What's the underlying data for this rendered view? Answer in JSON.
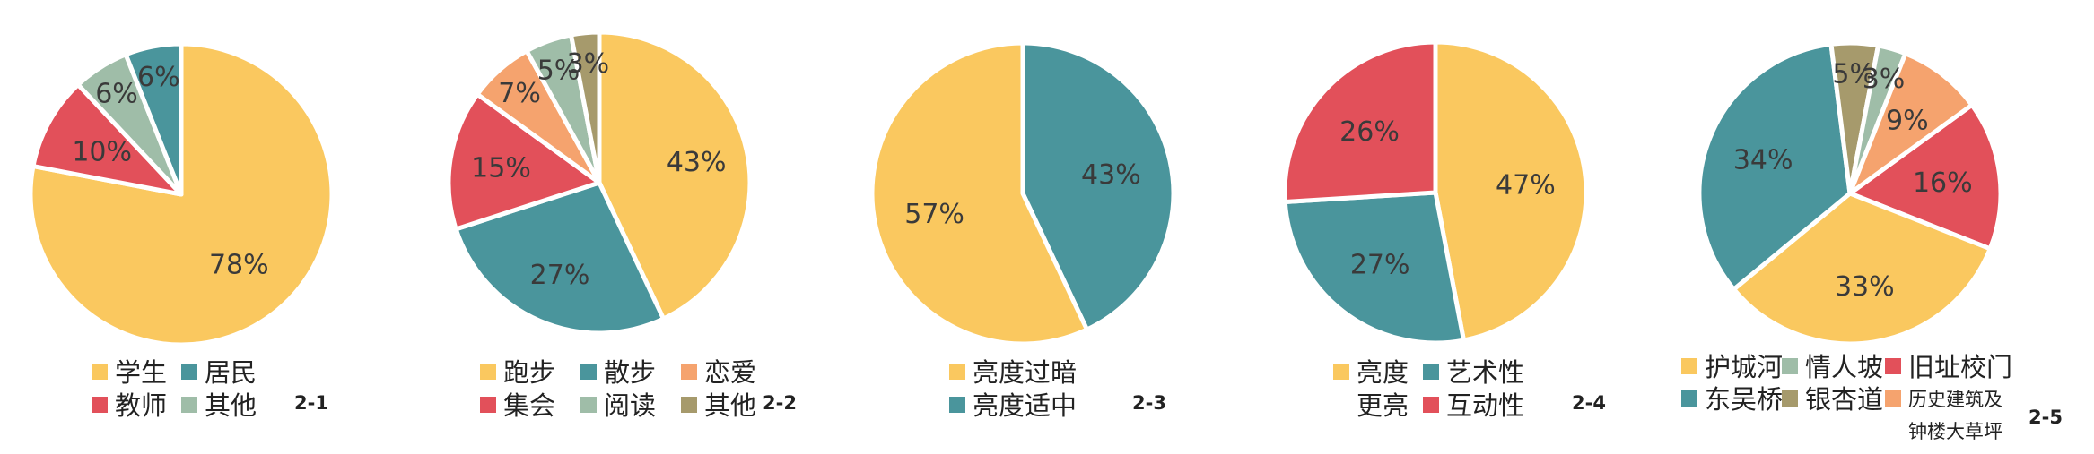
{
  "palette": {
    "yellow": "#FAC85F",
    "teal": "#4A959C",
    "red": "#E2505A",
    "sage": "#9FBDA8",
    "orange": "#F5A36E",
    "olive": "#A69A6C"
  },
  "chart_data": [
    {
      "type": "pie",
      "tag": "2-1",
      "slices": [
        {
          "label": "学生",
          "value": 78,
          "pct": "78%",
          "color": "#FAC85F"
        },
        {
          "label": "教师",
          "value": 10,
          "pct": "10%",
          "color": "#E2505A"
        },
        {
          "label": "其他",
          "value": 6,
          "pct": "6%",
          "color": "#9FBDA8"
        },
        {
          "label": "居民",
          "value": 6,
          "pct": "6%",
          "color": "#4A959C"
        }
      ],
      "legend_rows": [
        [
          "学生",
          "居民"
        ],
        [
          "教师",
          "其他"
        ]
      ],
      "legend_colors": [
        [
          "#FAC85F",
          "#4A959C"
        ],
        [
          "#E2505A",
          "#9FBDA8"
        ]
      ]
    },
    {
      "type": "pie",
      "tag": "2-2",
      "slices": [
        {
          "label": "跑步",
          "value": 43,
          "pct": "43%",
          "color": "#FAC85F"
        },
        {
          "label": "散步",
          "value": 27,
          "pct": "27%",
          "color": "#4A959C"
        },
        {
          "label": "集会",
          "value": 15,
          "pct": "15%",
          "color": "#E2505A"
        },
        {
          "label": "恋爱",
          "value": 7,
          "pct": "7%",
          "color": "#F5A36E"
        },
        {
          "label": "阅读",
          "value": 5,
          "pct": "5%",
          "color": "#9FBDA8"
        },
        {
          "label": "其他",
          "value": 3,
          "pct": "3%",
          "color": "#A69A6C"
        }
      ],
      "legend_rows": [
        [
          "跑步",
          "散步",
          "恋爱"
        ],
        [
          "集会",
          "阅读",
          "其他"
        ]
      ],
      "legend_colors": [
        [
          "#FAC85F",
          "#4A959C",
          "#F5A36E"
        ],
        [
          "#E2505A",
          "#9FBDA8",
          "#A69A6C"
        ]
      ]
    },
    {
      "type": "pie",
      "tag": "2-3",
      "slices": [
        {
          "label": "亮度适中",
          "value": 43,
          "pct": "43%",
          "color": "#4A959C"
        },
        {
          "label": "亮度过暗",
          "value": 57,
          "pct": "57%",
          "color": "#FAC85F"
        }
      ],
      "legend_rows": [
        [
          "亮度过暗"
        ],
        [
          "亮度适中"
        ]
      ],
      "legend_colors": [
        [
          "#FAC85F"
        ],
        [
          "#4A959C"
        ]
      ]
    },
    {
      "type": "pie",
      "tag": "2-4",
      "slices": [
        {
          "label": "亮度更亮",
          "value": 47,
          "pct": "47%",
          "color": "#FAC85F"
        },
        {
          "label": "艺术性",
          "value": 27,
          "pct": "27%",
          "color": "#4A959C"
        },
        {
          "label": "互动性",
          "value": 26,
          "pct": "26%",
          "color": "#E2505A"
        }
      ],
      "legend_rows": [
        [
          "亮度",
          "艺术性"
        ],
        [
          "更亮",
          "互动性"
        ]
      ],
      "legend_colors": [
        [
          "#FAC85F",
          "#4A959C"
        ],
        [
          null,
          "#E2505A"
        ]
      ]
    },
    {
      "type": "pie",
      "tag": "2-5",
      "slices": [
        {
          "label": "旧址校门",
          "value": 16,
          "pct": "16%",
          "color": "#E2505A"
        },
        {
          "label": "护城河",
          "value": 33,
          "pct": "33%",
          "color": "#FAC85F"
        },
        {
          "label": "东吴桥",
          "value": 34,
          "pct": "34%",
          "color": "#4A959C"
        },
        {
          "label": "银杏道",
          "value": 5,
          "pct": "5%",
          "color": "#A69A6C"
        },
        {
          "label": "情人坡",
          "value": 3,
          "pct": "3%",
          "color": "#9FBDA8"
        },
        {
          "label": "历史建筑及钟楼大草坪",
          "value": 9,
          "pct": "9%",
          "color": "#F5A36E"
        }
      ],
      "legend_rows": [
        [
          "护城河",
          "情人坡",
          "旧址校门"
        ],
        [
          "东吴桥",
          "银杏道",
          "历史建筑及"
        ],
        [
          "",
          "",
          "钟楼大草坪"
        ]
      ],
      "legend_colors": [
        [
          "#FAC85F",
          "#9FBDA8",
          "#E2505A"
        ],
        [
          "#4A959C",
          "#A69A6C",
          "#F5A36E"
        ],
        [
          null,
          null,
          null
        ]
      ]
    }
  ]
}
